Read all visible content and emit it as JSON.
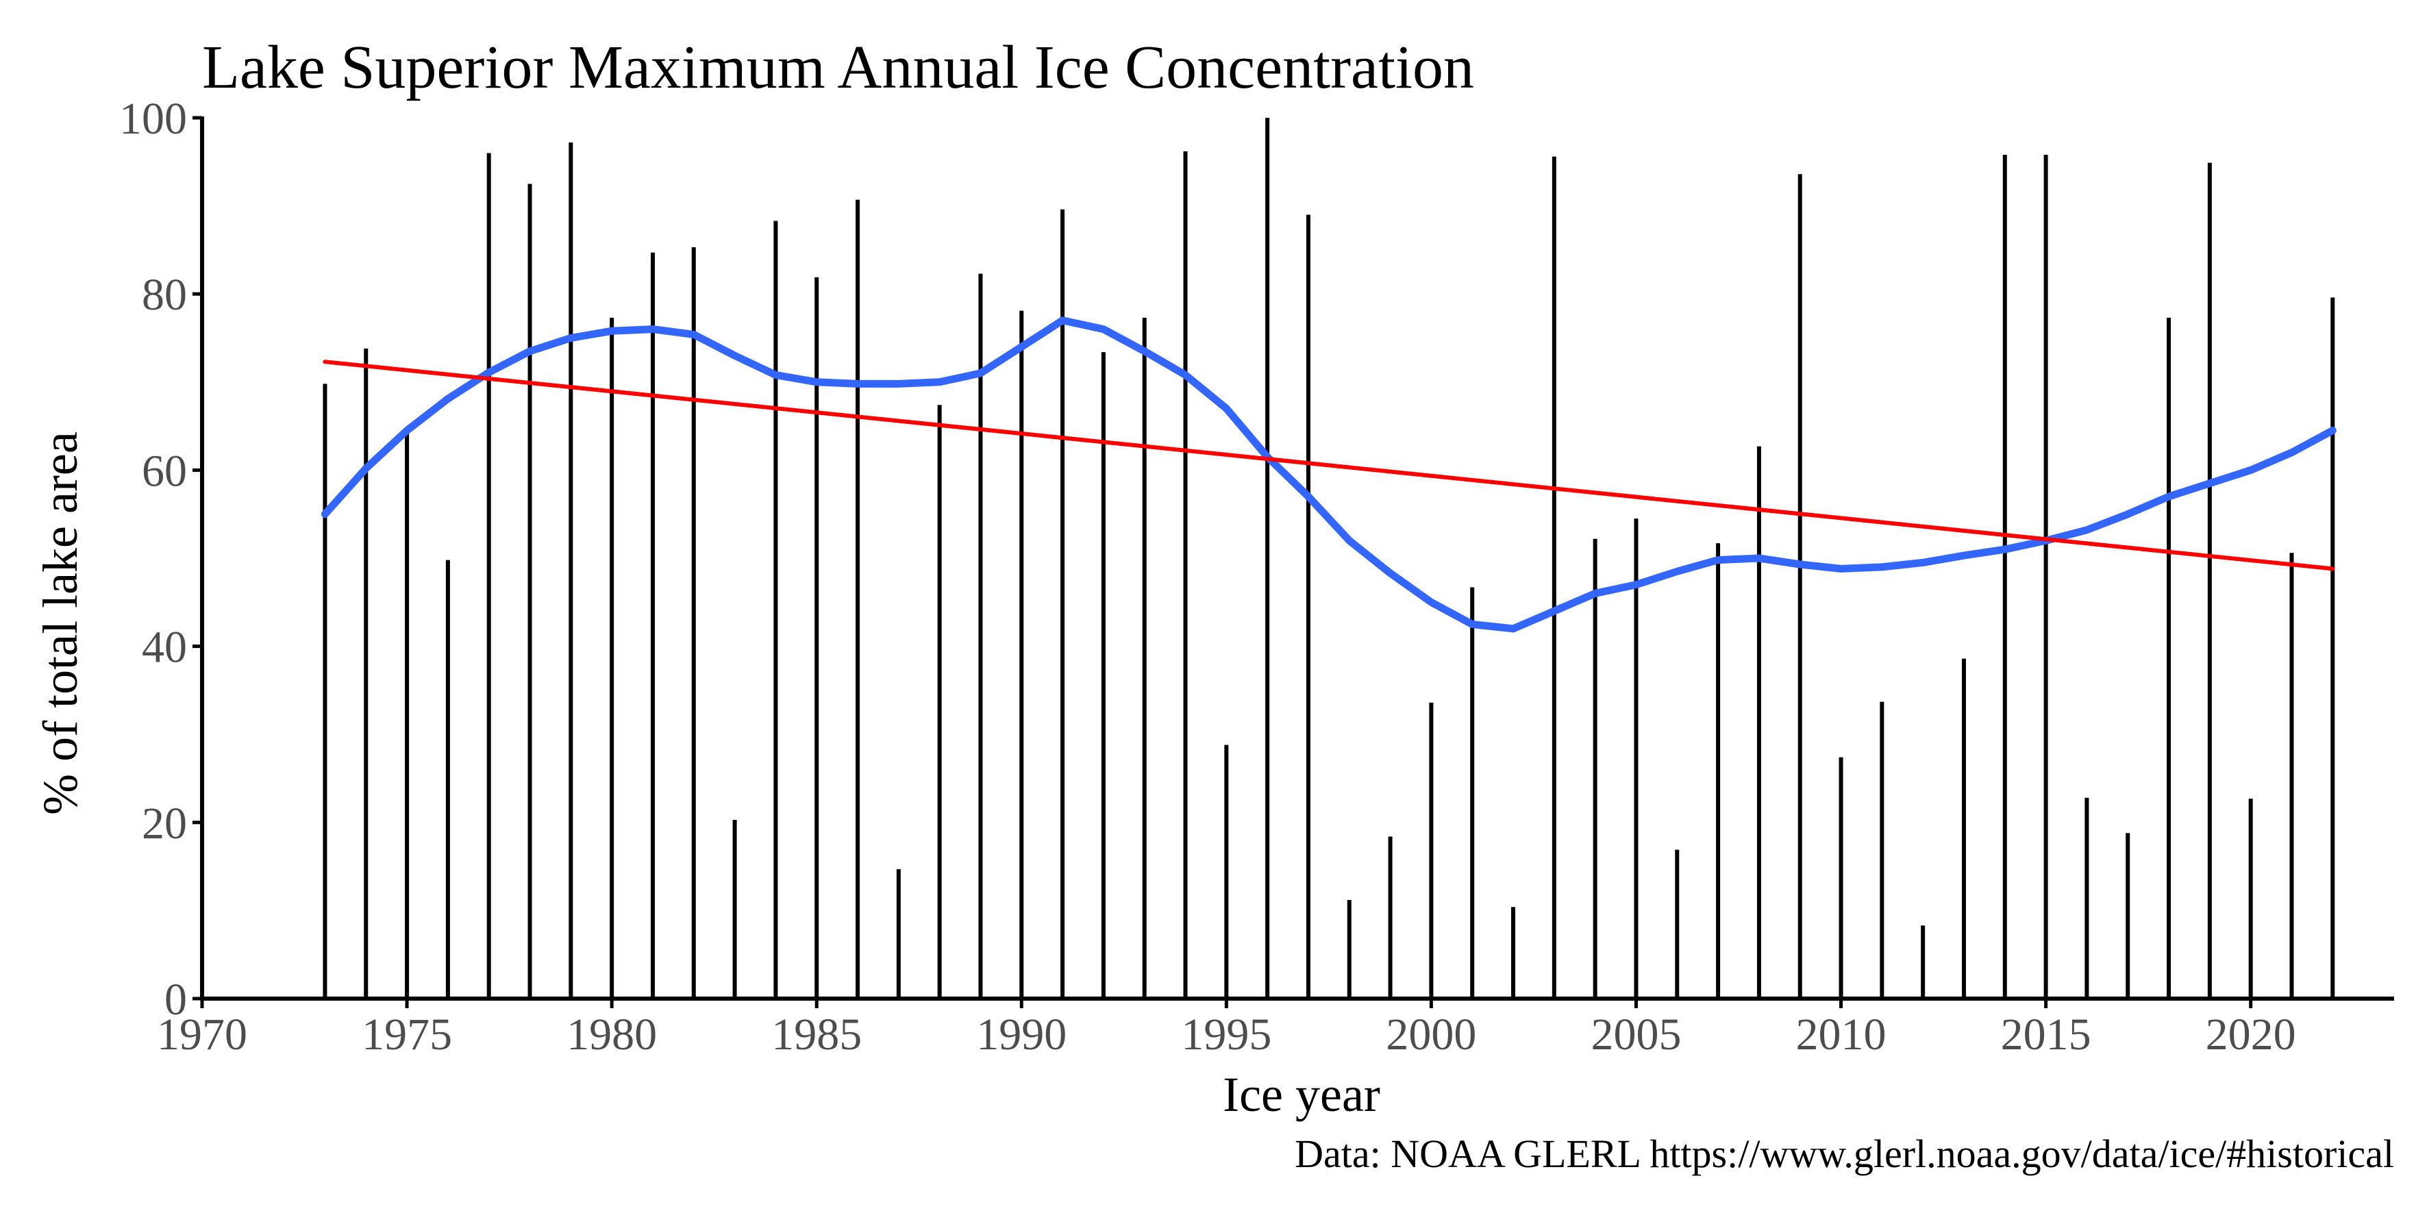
{
  "chart_data": {
    "type": "bar",
    "title": "Lake Superior Maximum Annual Ice Concentration",
    "xlabel": "Ice year",
    "ylabel": "% of total lake area",
    "caption": "Data: NOAA GLERL https://www.glerl.noaa.gov/data/ice/#historical",
    "xlim": [
      1970,
      2023.5
    ],
    "ylim": [
      0,
      100
    ],
    "x_ticks": [
      1970,
      1975,
      1980,
      1985,
      1990,
      1995,
      2000,
      2005,
      2010,
      2015,
      2020
    ],
    "y_ticks": [
      0,
      20,
      40,
      60,
      80,
      100
    ],
    "grid": false,
    "legend": "none",
    "bars": {
      "color": "#000000",
      "x": [
        1973,
        1974,
        1975,
        1976,
        1977,
        1978,
        1979,
        1980,
        1981,
        1982,
        1983,
        1984,
        1985,
        1986,
        1987,
        1988,
        1989,
        1990,
        1991,
        1992,
        1993,
        1994,
        1995,
        1996,
        1997,
        1998,
        1999,
        2000,
        2001,
        2002,
        2003,
        2004,
        2005,
        2006,
        2007,
        2008,
        2009,
        2010,
        2011,
        2012,
        2013,
        2014,
        2015,
        2016,
        2017,
        2018,
        2019,
        2020,
        2021,
        2022
      ],
      "values": [
        69.8,
        73.8,
        64.3,
        49.8,
        96.0,
        92.5,
        97.2,
        77.3,
        84.7,
        85.3,
        20.3,
        88.3,
        81.9,
        90.7,
        14.7,
        67.4,
        82.3,
        78.1,
        89.6,
        73.4,
        77.3,
        96.2,
        28.8,
        100.0,
        89.0,
        11.2,
        18.4,
        33.6,
        46.7,
        10.4,
        95.6,
        52.2,
        54.5,
        16.9,
        51.7,
        62.7,
        93.6,
        27.4,
        33.7,
        8.3,
        38.6,
        95.8,
        95.8,
        22.8,
        18.8,
        77.3,
        94.9,
        22.7,
        50.6,
        79.6
      ]
    },
    "series": [
      {
        "type": "line",
        "color": "#3366ff",
        "x": [
          1973,
          1974,
          1975,
          1976,
          1977,
          1978,
          1979,
          1980,
          1981,
          1982,
          1983,
          1984,
          1985,
          1986,
          1987,
          1988,
          1989,
          1990,
          1991,
          1992,
          1993,
          1994,
          1995,
          1996,
          1997,
          1998,
          1999,
          2000,
          2001,
          2002,
          2003,
          2004,
          2005,
          2006,
          2007,
          2008,
          2009,
          2010,
          2011,
          2012,
          2013,
          2014,
          2015,
          2016,
          2017,
          2018,
          2019,
          2020,
          2021,
          2022
        ],
        "values": [
          55.0,
          60.2,
          64.5,
          68.1,
          71.1,
          73.5,
          75.0,
          75.8,
          76.0,
          75.4,
          73.0,
          70.8,
          70.0,
          69.8,
          69.8,
          70.0,
          71.0,
          74.0,
          77.0,
          76.0,
          73.5,
          70.8,
          67.0,
          61.5,
          57.0,
          52.0,
          48.3,
          45.0,
          42.5,
          42.0,
          44.0,
          46.0,
          47.0,
          48.5,
          49.8,
          50.0,
          49.3,
          48.8,
          49.0,
          49.5,
          50.3,
          51.0,
          52.0,
          53.2,
          55.0,
          57.0,
          58.5,
          60.0,
          62.0,
          64.5
        ]
      },
      {
        "type": "line",
        "color": "#ff0000",
        "x": [
          1973,
          2022
        ],
        "values": [
          72.3,
          48.8
        ]
      }
    ]
  }
}
